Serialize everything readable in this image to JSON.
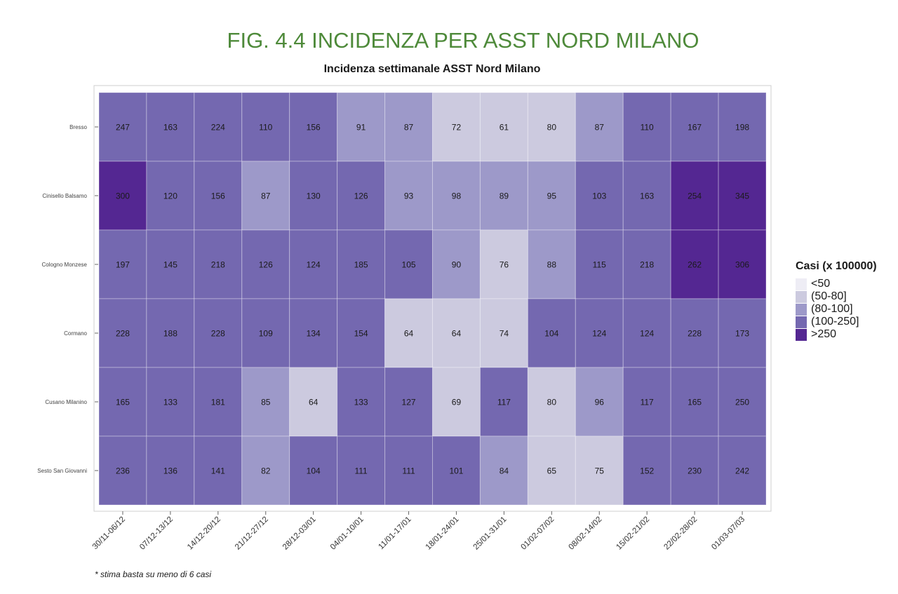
{
  "figure_title": "FIG. 4.4 INCIDENZA PER ASST NORD MILANO",
  "footnote": "* stima basta su meno di 6 casi",
  "chart_data": {
    "type": "heatmap",
    "title": "Incidenza settimanale ASST Nord Milano",
    "xlabel": "",
    "ylabel": "",
    "x": [
      "30/11-06/12",
      "07/12-13/12",
      "14/12-20/12",
      "21/12-27/12",
      "28/12-03/01",
      "04/01-10/01",
      "11/01-17/01",
      "18/01-24/01",
      "25/01-31/01",
      "01/02-07/02",
      "08/02-14/02",
      "15/02-21/02",
      "22/02-28/02",
      "01/03-07/03"
    ],
    "y": [
      "Bresso",
      "Cinisello Balsamo",
      "Cologno Monzese",
      "Cormano",
      "Cusano Milanino",
      "Sesto San Giovanni"
    ],
    "values": [
      [
        247,
        163,
        224,
        110,
        156,
        91,
        87,
        72,
        61,
        80,
        87,
        110,
        167,
        198
      ],
      [
        300,
        120,
        156,
        87,
        130,
        126,
        93,
        98,
        89,
        95,
        103,
        163,
        254,
        345
      ],
      [
        197,
        145,
        218,
        126,
        124,
        185,
        105,
        90,
        76,
        88,
        115,
        218,
        262,
        306
      ],
      [
        228,
        188,
        228,
        109,
        134,
        154,
        64,
        64,
        74,
        104,
        124,
        124,
        228,
        173
      ],
      [
        165,
        133,
        181,
        85,
        64,
        133,
        127,
        69,
        117,
        80,
        96,
        117,
        165,
        250
      ],
      [
        236,
        136,
        141,
        82,
        104,
        111,
        111,
        101,
        84,
        65,
        75,
        152,
        230,
        242
      ]
    ],
    "legend": {
      "title": "Casi (x 100000)",
      "position": "right",
      "classes": [
        {
          "label": "<50",
          "color": "#eeedf5"
        },
        {
          "label": "(50-80]",
          "color": "#cccadf"
        },
        {
          "label": "(80-100]",
          "color": "#9d99c9"
        },
        {
          "label": "(100-250]",
          "color": "#7468b0"
        },
        {
          "label": ">250",
          "color": "#542792"
        }
      ]
    },
    "grid": true
  }
}
